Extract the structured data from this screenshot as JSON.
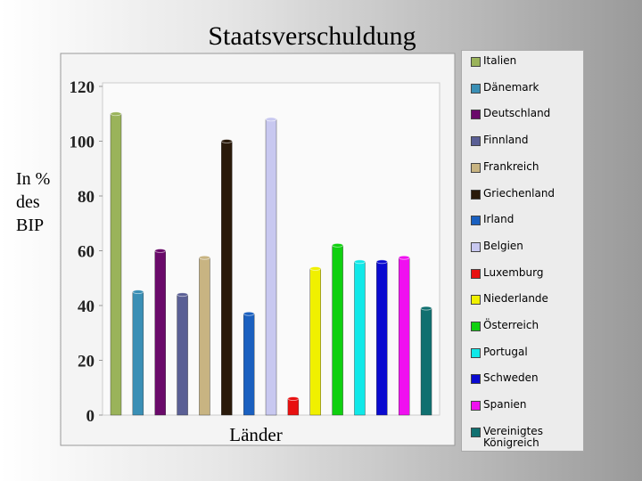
{
  "chart_data": {
    "type": "bar",
    "title": "Staatsverschuldung",
    "y_label": "In % des BIP",
    "x_label": "Länder",
    "categories": [
      "Italien",
      "Dänemark",
      "Deutschland",
      "Finnland",
      "Frankreich",
      "Griechenland",
      "Irland",
      "Belgien",
      "Luxemburg",
      "Niederlande",
      "Österreich",
      "Portugal",
      "Schweden",
      "Spanien",
      "Vereinigtes Königreich"
    ],
    "values": [
      110,
      45,
      60,
      44,
      57.5,
      100,
      37,
      108,
      6,
      53.5,
      62,
      56,
      56,
      57.5,
      39
    ],
    "colors": [
      "#9ab35a",
      "#3a8fb5",
      "#6a0a6a",
      "#5a5f95",
      "#c8b482",
      "#2a1a0a",
      "#1a60c0",
      "#c8c8f0",
      "#e81010",
      "#f0f000",
      "#10d010",
      "#10e8e8",
      "#0a0ad0",
      "#f010f0",
      "#107070"
    ],
    "ylim": [
      0,
      120
    ],
    "yticks": [
      0,
      20,
      40,
      60,
      80,
      100,
      120
    ],
    "grid": false,
    "legend": "right"
  }
}
